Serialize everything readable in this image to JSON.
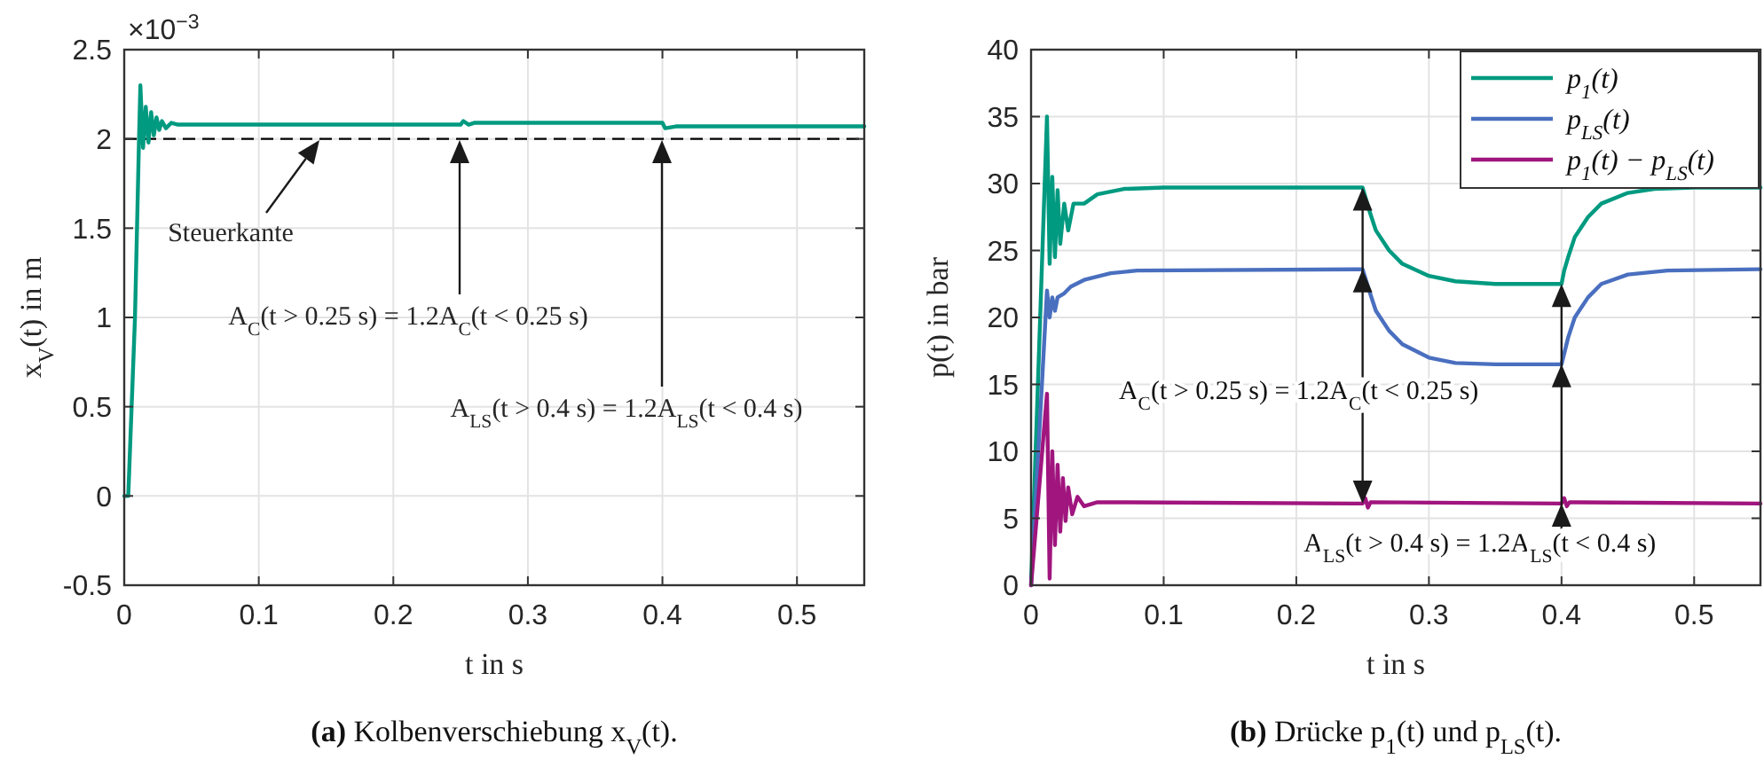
{
  "chart_data": [
    {
      "type": "line",
      "title": "(a) Kolbenverschiebung x$_{V}$(t).",
      "xlabel": "t in s",
      "ylabel": "x$_{V}$(t) in m",
      "xlim": [
        0,
        0.55
      ],
      "xticks": [
        0,
        0.1,
        0.2,
        0.3,
        0.4,
        0.5
      ],
      "ylim": [
        -0.5,
        2.5
      ],
      "yticks": [
        -0.5,
        0,
        0.5,
        1,
        1.5,
        2,
        2.5
      ],
      "grid": true,
      "legend": false,
      "series": [
        {
          "color": "#009a80",
          "x": [
            0,
            0.003,
            0.008,
            0.011,
            0.012,
            0.014,
            0.016,
            0.018,
            0.02,
            0.022,
            0.024,
            0.026,
            0.028,
            0.031,
            0.035,
            0.04,
            0.25,
            0.252,
            0.256,
            0.26,
            0.4,
            0.402,
            0.41,
            0.55
          ],
          "values": [
            0,
            0,
            1.0,
            2.0,
            2.3,
            1.95,
            2.18,
            1.98,
            2.15,
            2.02,
            2.12,
            2.05,
            2.1,
            2.06,
            2.09,
            2.08,
            2.08,
            2.1,
            2.08,
            2.09,
            2.09,
            2.06,
            2.07,
            2.07
          ]
        }
      ],
      "ref_lines": [
        {
          "axis": "y",
          "value": 2,
          "color": "#000000",
          "line_style": "dashed"
        }
      ],
      "annotations": [
        "×10$^{−3}$",
        "Steuerkante",
        "A$_{C}$(t > 0.25 s) = 1.2A$_{C}$(t < 0.25 s)",
        "A$_{LS}$(t > 0.4 s) = 1.2A$_{LS}$(t < 0.4 s)"
      ]
    },
    {
      "type": "line",
      "title": "(b) Drücke p$_{1}$(t) und p$_{LS}$(t).",
      "xlabel": "t in s",
      "ylabel": "p(t) in bar",
      "xlim": [
        0,
        0.55
      ],
      "xticks": [
        0,
        0.1,
        0.2,
        0.3,
        0.4,
        0.5
      ],
      "ylim": [
        0,
        40
      ],
      "yticks": [
        0,
        5,
        10,
        15,
        20,
        25,
        30,
        35,
        40
      ],
      "grid": true,
      "legend": "top right",
      "series": [
        {
          "name": "p$_{1}$(t)",
          "color": "#009a80",
          "x": [
            0,
            0.012,
            0.014,
            0.016,
            0.018,
            0.02,
            0.022,
            0.025,
            0.028,
            0.032,
            0.04,
            0.05,
            0.07,
            0.1,
            0.25,
            0.255,
            0.26,
            0.27,
            0.28,
            0.3,
            0.32,
            0.35,
            0.4,
            0.402,
            0.405,
            0.41,
            0.42,
            0.43,
            0.45,
            0.47,
            0.5,
            0.55
          ],
          "values": [
            0,
            35,
            24,
            30.5,
            24.5,
            29.5,
            25.5,
            28.5,
            26.5,
            28.5,
            28.5,
            29.2,
            29.6,
            29.7,
            29.7,
            28,
            26.5,
            25,
            24,
            23.1,
            22.7,
            22.5,
            22.5,
            23.5,
            24.5,
            26,
            27.5,
            28.5,
            29.3,
            29.6,
            29.7,
            29.7
          ]
        },
        {
          "name": "p$_{LS}$(t)",
          "color": "#4a6fbf",
          "x": [
            0,
            0.012,
            0.014,
            0.016,
            0.018,
            0.02,
            0.025,
            0.03,
            0.04,
            0.06,
            0.08,
            0.25,
            0.255,
            0.26,
            0.27,
            0.28,
            0.3,
            0.32,
            0.35,
            0.4,
            0.405,
            0.41,
            0.42,
            0.43,
            0.45,
            0.48,
            0.55
          ],
          "values": [
            0,
            22,
            20,
            21.5,
            20.5,
            21.5,
            21.8,
            22.3,
            22.8,
            23.3,
            23.5,
            23.6,
            22,
            20.5,
            19,
            18,
            17,
            16.6,
            16.5,
            16.5,
            18.5,
            20,
            21.5,
            22.5,
            23.2,
            23.5,
            23.6
          ]
        },
        {
          "name": "p$_{1}$(t) − p$_{LS}$(t)",
          "color": "#a0157e",
          "x": [
            0,
            0.012,
            0.014,
            0.016,
            0.018,
            0.02,
            0.022,
            0.024,
            0.026,
            0.028,
            0.031,
            0.035,
            0.04,
            0.05,
            0.25,
            0.252,
            0.254,
            0.256,
            0.4,
            0.402,
            0.404,
            0.406,
            0.55
          ],
          "values": [
            0,
            14.3,
            0.5,
            10,
            3,
            9,
            4,
            8,
            4.8,
            7.3,
            5.3,
            6.6,
            5.9,
            6.2,
            6.1,
            6.5,
            5.8,
            6.2,
            6.1,
            6.5,
            5.9,
            6.2,
            6.1
          ]
        }
      ],
      "annotations": [
        {
          "text": "A$_{C}$(t > 0.25 s) = 1.2A$_{C}$(t < 0.25 s)",
          "x": 0.25,
          "y": 29.7
        },
        {
          "text": "A$_{LS}$(t > 0.4 s) = 1.2A$_{LS}$(t < 0.4 s)",
          "x": 0.4,
          "y": 22.5
        }
      ]
    }
  ]
}
